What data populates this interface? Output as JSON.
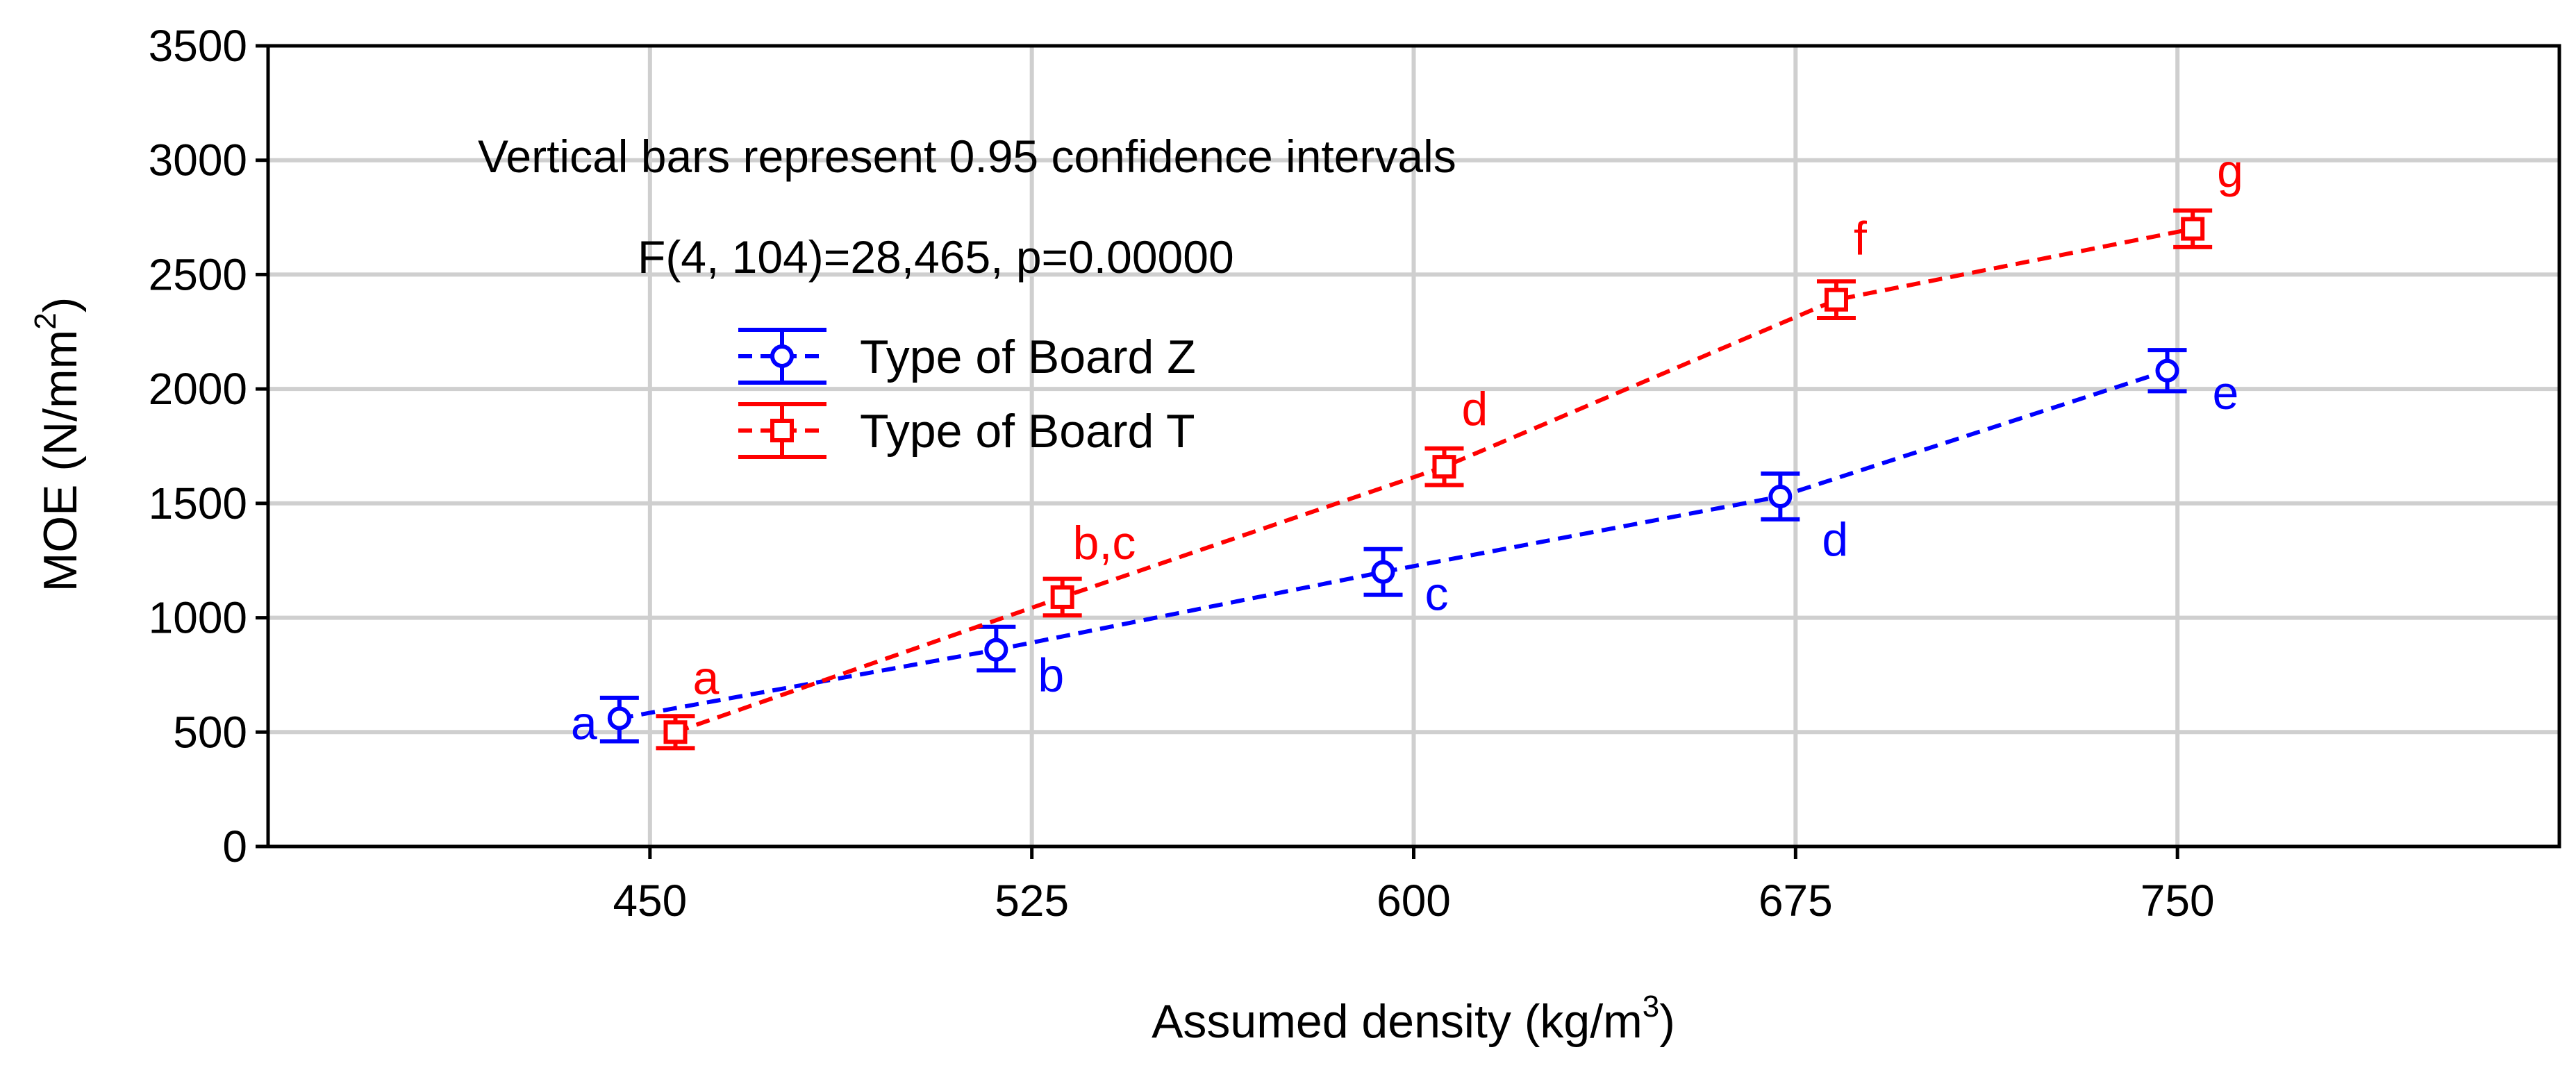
{
  "chart_data": {
    "type": "line",
    "xlabel_main": "Assumed density (kg/m",
    "xlabel_sup": "3",
    "xlabel_end": ")",
    "ylabel_main": "MOE (N/mm",
    "ylabel_sup": "2",
    "ylabel_end": ")",
    "annotation_1": "Vertical bars represent 0.95 confidence intervals",
    "annotation_2": "F(4, 104)=28,465, p=0.00000",
    "xlim": [
      375,
      825
    ],
    "ylim": [
      0,
      3500
    ],
    "x_ticks": [
      450,
      525,
      600,
      675,
      750
    ],
    "x_tick_labels": [
      "450",
      "525",
      "600",
      "675",
      "750"
    ],
    "y_ticks": [
      0,
      500,
      1000,
      1500,
      2000,
      2500,
      3000,
      3500
    ],
    "y_tick_labels": [
      "0",
      "500",
      "1000",
      "1500",
      "2000",
      "2500",
      "3000",
      "3500"
    ],
    "grid": true,
    "legend_position": "upper-left",
    "series": [
      {
        "name": "Type of Board Z",
        "color": "#0000ff",
        "marker": "circle",
        "line_style": "dashed",
        "x": [
          444,
          518,
          594,
          672,
          748
        ],
        "y": [
          560,
          860,
          1200,
          1530,
          2080
        ],
        "ci_low": [
          460,
          770,
          1100,
          1430,
          1990
        ],
        "ci_high": [
          650,
          960,
          1300,
          1630,
          2170
        ],
        "labels": [
          "a",
          "b",
          "c",
          "d",
          "e"
        ]
      },
      {
        "name": "Type of Board T",
        "color": "#ff0000",
        "marker": "square",
        "line_style": "dashed",
        "x": [
          455,
          531,
          606,
          683,
          753
        ],
        "y": [
          500,
          1090,
          1660,
          2390,
          2700
        ],
        "ci_low": [
          430,
          1010,
          1580,
          2310,
          2620
        ],
        "ci_high": [
          570,
          1170,
          1740,
          2470,
          2780
        ],
        "labels": [
          "a",
          "b,c",
          "d",
          "f",
          "g"
        ]
      }
    ]
  }
}
